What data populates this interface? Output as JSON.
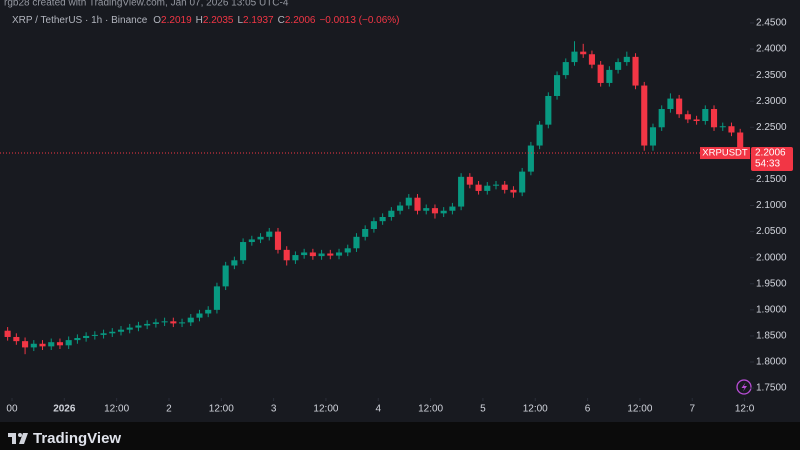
{
  "header": {
    "text": "rgb28 created with TradingView.com, Jan 07, 2026 13:05 UTC-4"
  },
  "legend": {
    "symbol": "XRP / TetherUS · 1h · Binance",
    "ohlc_labels": [
      "O",
      "H",
      "L",
      "C"
    ],
    "open": 2.2019,
    "high": 2.2035,
    "low": 2.1937,
    "close": 2.2006,
    "change": "−0.0013 (−0.06%)"
  },
  "price_tag": {
    "symbol": "XRPUSDT",
    "price": 2.2006,
    "countdown": "54:33"
  },
  "footer": {
    "brand": "TradingView"
  },
  "chart_data": {
    "type": "candlestick",
    "up_color": "#089981",
    "down_color": "#f23645",
    "grid": false,
    "xlim": [
      -2.75,
      169.25
    ],
    "ylim": [
      1.731,
      2.494
    ],
    "xticks": [
      {
        "value": 0,
        "label": "00"
      },
      {
        "value": 12,
        "label": "2026"
      },
      {
        "value": 24,
        "label": "12:00"
      },
      {
        "value": 36,
        "label": "2"
      },
      {
        "value": 48,
        "label": "12:00"
      },
      {
        "value": 60,
        "label": "3"
      },
      {
        "value": 72,
        "label": "12:00"
      },
      {
        "value": 84,
        "label": "4"
      },
      {
        "value": 96,
        "label": "12:00"
      },
      {
        "value": 108,
        "label": "5"
      },
      {
        "value": 120,
        "label": "12:00"
      },
      {
        "value": 132,
        "label": "6"
      },
      {
        "value": 144,
        "label": "12:00"
      },
      {
        "value": 156,
        "label": "7"
      },
      {
        "value": 168,
        "label": "12:0"
      }
    ],
    "yticks": [
      {
        "value": 1.75,
        "label": "1.7500"
      },
      {
        "value": 1.8,
        "label": "1.8000"
      },
      {
        "value": 1.85,
        "label": "1.8500"
      },
      {
        "value": 1.9,
        "label": "1.9000"
      },
      {
        "value": 1.95,
        "label": "1.9500"
      },
      {
        "value": 2.0,
        "label": "2.0000"
      },
      {
        "value": 2.05,
        "label": "2.0500"
      },
      {
        "value": 2.1,
        "label": "2.1000"
      },
      {
        "value": 2.15,
        "label": "2.1500"
      },
      {
        "value": 2.2,
        "label": "2.2000"
      },
      {
        "value": 2.25,
        "label": "2.2500"
      },
      {
        "value": 2.3,
        "label": "2.3000"
      },
      {
        "value": 2.35,
        "label": "2.3500"
      },
      {
        "value": 2.4,
        "label": "2.4000"
      },
      {
        "value": 2.45,
        "label": "2.4500"
      }
    ],
    "x": [
      -1,
      1,
      3,
      5,
      7,
      9,
      11,
      13,
      15,
      17,
      19,
      21,
      23,
      25,
      27,
      29,
      31,
      33,
      35,
      37,
      39,
      41,
      43,
      45,
      47,
      49,
      51,
      53,
      55,
      57,
      59,
      61,
      63,
      65,
      67,
      69,
      71,
      73,
      75,
      77,
      79,
      81,
      83,
      85,
      87,
      89,
      91,
      93,
      95,
      97,
      99,
      101,
      103,
      105,
      107,
      109,
      111,
      113,
      115,
      117,
      119,
      121,
      123,
      125,
      127,
      129,
      131,
      133,
      135,
      137,
      139,
      141,
      143,
      145,
      147,
      149,
      151,
      153,
      155,
      157,
      159,
      161,
      163,
      165,
      167
    ],
    "open": [
      1.86,
      1.848,
      1.84,
      1.828,
      1.835,
      1.83,
      1.838,
      1.832,
      1.842,
      1.846,
      1.85,
      1.852,
      1.855,
      1.858,
      1.862,
      1.866,
      1.87,
      1.873,
      1.876,
      1.878,
      1.874,
      1.876,
      1.885,
      1.893,
      1.9,
      1.945,
      1.985,
      1.995,
      2.03,
      2.035,
      2.04,
      2.05,
      2.015,
      1.995,
      2.005,
      2.01,
      2.003,
      2.008,
      2.004,
      2.01,
      2.018,
      2.04,
      2.055,
      2.07,
      2.078,
      2.09,
      2.1,
      2.115,
      2.09,
      2.095,
      2.085,
      2.09,
      2.098,
      2.155,
      2.14,
      2.128,
      2.138,
      2.14,
      2.13,
      2.125,
      2.165,
      2.215,
      2.255,
      2.31,
      2.35,
      2.375,
      2.395,
      2.39,
      2.37,
      2.335,
      2.36,
      2.375,
      2.385,
      2.33,
      2.215,
      2.25,
      2.285,
      2.305,
      2.275,
      2.265,
      2.262,
      2.285,
      2.25,
      2.252,
      2.24
    ],
    "high": [
      1.867,
      1.855,
      1.847,
      1.842,
      1.842,
      1.845,
      1.845,
      1.849,
      1.853,
      1.857,
      1.859,
      1.862,
      1.865,
      1.869,
      1.873,
      1.877,
      1.88,
      1.883,
      1.885,
      1.885,
      1.883,
      1.892,
      1.9,
      1.907,
      1.952,
      1.992,
      2.002,
      2.037,
      2.042,
      2.047,
      2.057,
      2.057,
      2.022,
      2.012,
      2.017,
      2.017,
      2.015,
      2.015,
      2.017,
      2.025,
      2.047,
      2.062,
      2.077,
      2.085,
      2.097,
      2.107,
      2.122,
      2.122,
      2.102,
      2.102,
      2.097,
      2.105,
      2.162,
      2.162,
      2.147,
      2.145,
      2.147,
      2.147,
      2.137,
      2.172,
      2.222,
      2.262,
      2.317,
      2.357,
      2.382,
      2.415,
      2.41,
      2.397,
      2.377,
      2.367,
      2.382,
      2.395,
      2.392,
      2.337,
      2.257,
      2.292,
      2.315,
      2.312,
      2.282,
      2.272,
      2.292,
      2.292,
      2.259,
      2.259,
      2.247
    ],
    "low": [
      1.841,
      1.833,
      1.815,
      1.821,
      1.823,
      1.823,
      1.825,
      1.825,
      1.835,
      1.839,
      1.843,
      1.845,
      1.848,
      1.851,
      1.855,
      1.859,
      1.863,
      1.866,
      1.869,
      1.867,
      1.867,
      1.869,
      1.878,
      1.886,
      1.893,
      1.938,
      1.978,
      1.988,
      2.023,
      2.028,
      2.033,
      2.008,
      1.985,
      1.988,
      1.998,
      1.996,
      1.996,
      1.997,
      1.997,
      2.003,
      2.011,
      2.033,
      2.048,
      2.063,
      2.071,
      2.083,
      2.093,
      2.083,
      2.083,
      2.075,
      2.078,
      2.083,
      2.091,
      2.133,
      2.121,
      2.121,
      2.131,
      2.123,
      2.115,
      2.118,
      2.158,
      2.208,
      2.248,
      2.303,
      2.343,
      2.368,
      2.383,
      2.363,
      2.328,
      2.328,
      2.353,
      2.368,
      2.323,
      2.205,
      2.205,
      2.243,
      2.278,
      2.268,
      2.258,
      2.255,
      2.255,
      2.243,
      2.243,
      2.233,
      2.1937
    ],
    "close": [
      1.848,
      1.84,
      1.828,
      1.835,
      1.83,
      1.838,
      1.832,
      1.842,
      1.846,
      1.85,
      1.852,
      1.855,
      1.858,
      1.862,
      1.866,
      1.87,
      1.873,
      1.876,
      1.878,
      1.874,
      1.876,
      1.885,
      1.893,
      1.9,
      1.945,
      1.985,
      1.995,
      2.03,
      2.035,
      2.04,
      2.05,
      2.015,
      1.995,
      2.005,
      2.01,
      2.003,
      2.008,
      2.004,
      2.01,
      2.018,
      2.04,
      2.055,
      2.07,
      2.078,
      2.09,
      2.1,
      2.115,
      2.09,
      2.095,
      2.085,
      2.09,
      2.098,
      2.155,
      2.14,
      2.128,
      2.138,
      2.14,
      2.13,
      2.125,
      2.165,
      2.215,
      2.255,
      2.31,
      2.35,
      2.375,
      2.395,
      2.39,
      2.37,
      2.335,
      2.36,
      2.375,
      2.385,
      2.33,
      2.215,
      2.25,
      2.285,
      2.305,
      2.275,
      2.265,
      2.262,
      2.285,
      2.25,
      2.252,
      2.24,
      2.2006
    ]
  }
}
